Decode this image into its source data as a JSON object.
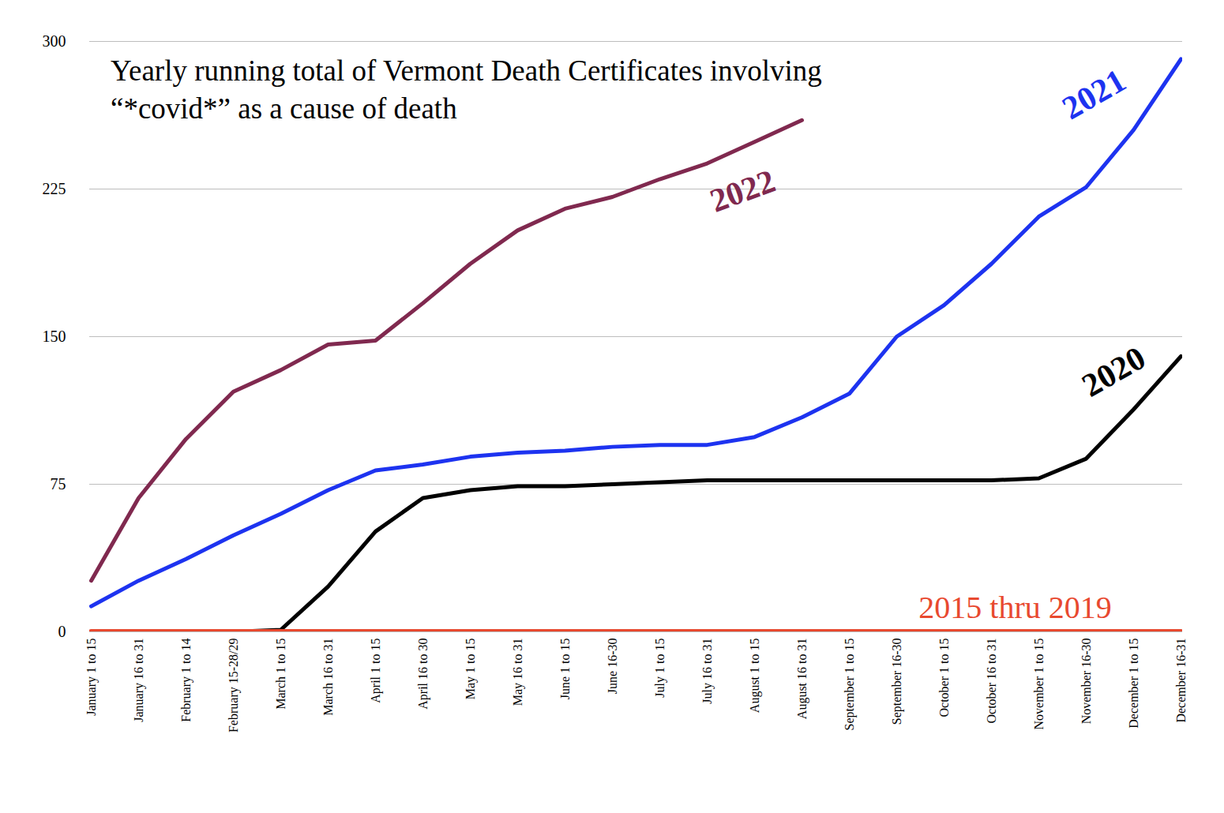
{
  "chart_data": {
    "type": "line",
    "title": "Yearly running total of Vermont Death Certificates involving “*covid*” as a cause of death",
    "categories": [
      "January 1 to 15",
      "January 16 to 31",
      "February 1 to 14",
      "February 15-28/29",
      "March 1 to 15",
      "March 16 to 31",
      "April 1 to 15",
      "April 16 to 30",
      "May 1 to 15",
      "May 16 to 31",
      "June 1 to 15",
      "June 16-30",
      "July 1 to 15",
      "July 16 to 31",
      "August 1 to 15",
      "August 16 to 31",
      "September 1 to 15",
      "September 16-30",
      "October 1 to 15",
      "October 16 to 31",
      "November 1 to 15",
      "November 16-30",
      "December 1 to 15",
      "December 16-31"
    ],
    "series": [
      {
        "name": "2022",
        "color": "#80294f",
        "values": [
          26,
          68,
          98,
          122,
          133,
          146,
          148,
          167,
          187,
          204,
          215,
          221,
          230,
          238,
          249,
          260,
          null,
          null,
          null,
          null,
          null,
          null,
          null,
          null
        ]
      },
      {
        "name": "2021",
        "color": "#1d33f0",
        "values": [
          13,
          26,
          37,
          49,
          60,
          72,
          82,
          85,
          89,
          91,
          92,
          94,
          95,
          95,
          99,
          109,
          121,
          150,
          166,
          187,
          211,
          226,
          255,
          291
        ]
      },
      {
        "name": "2020",
        "color": "#000000",
        "values": [
          0,
          0,
          0,
          0,
          1,
          23,
          51,
          68,
          72,
          74,
          74,
          75,
          76,
          77,
          77,
          77,
          77,
          77,
          77,
          77,
          78,
          88,
          113,
          140
        ]
      },
      {
        "name": "2015 thru 2019",
        "color": "#e8492f",
        "values": [
          0,
          0,
          0,
          0,
          0,
          0,
          0,
          0,
          0,
          0,
          0,
          0,
          0,
          0,
          0,
          0,
          0,
          0,
          0,
          0,
          0,
          0,
          0,
          0
        ]
      }
    ],
    "ylim": [
      0,
      300
    ],
    "yticks": [
      0,
      75,
      150,
      225,
      300
    ],
    "grid": true
  }
}
